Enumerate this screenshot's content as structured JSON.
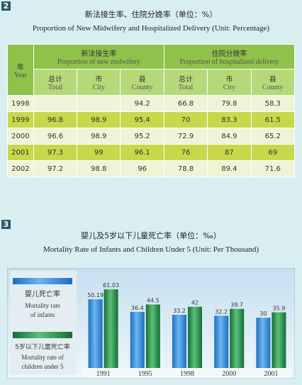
{
  "section1": {
    "number": "2",
    "title": "新法接生率、住院分娩率（单位：%）",
    "subtitle": "Proportion of New Midwifery and Hospitalized Delivery (Unit: Percentage)"
  },
  "table": {
    "year_header": {
      "zh": "年",
      "en": "Year"
    },
    "groups": [
      {
        "zh": "新法接生率",
        "en": "Proportion of new midwifery"
      },
      {
        "zh": "住院分娩率",
        "en": "Proportion of hospitalized delivery"
      }
    ],
    "subheaders": [
      {
        "zh": "总计",
        "en": "Total"
      },
      {
        "zh": "市",
        "en": "City"
      },
      {
        "zh": "县",
        "en": "County"
      },
      {
        "zh": "总计",
        "en": "Total"
      },
      {
        "zh": "市",
        "en": "City"
      },
      {
        "zh": "县",
        "en": "County"
      }
    ],
    "rows": [
      [
        "1998",
        null,
        null,
        "94.2",
        "66.8",
        "79.8",
        "58.3"
      ],
      [
        "1999",
        "96.8",
        "98.9",
        "95.4",
        "70",
        "83.3",
        "61.5"
      ],
      [
        "2000",
        "96.6",
        "98.9",
        "95.2",
        "72.9",
        "84.9",
        "65.2"
      ],
      [
        "2001",
        "97.3",
        "99",
        "96.1",
        "76",
        "87",
        "69"
      ],
      [
        "2002",
        "97.2",
        "98.8",
        "96",
        "78.8",
        "89.4",
        "71.6"
      ]
    ]
  },
  "section2": {
    "number": "3",
    "title": "婴儿及5岁以下儿童死亡率（单位：‰）",
    "subtitle": "Mortality Rate of Infants and Children Under 5 (Unit: Per Thousand)"
  },
  "chart_data": {
    "type": "bar",
    "categories": [
      "1991",
      "1995",
      "1998",
      "2000",
      "2001"
    ],
    "series": [
      {
        "name": "婴儿死亡率",
        "label_en": [
          "Mortality rate",
          "of infants"
        ],
        "color": "#2a7fd0",
        "values": [
          50.19,
          36.4,
          33.2,
          32.2,
          30
        ]
      },
      {
        "name": "5岁以下儿童死亡率",
        "label_en": [
          "Mortality rate of",
          "children under 5"
        ],
        "color": "#239048",
        "values": [
          61.03,
          44.5,
          42,
          39.7,
          35.9
        ]
      }
    ],
    "ylim": [
      -25,
      65
    ]
  }
}
